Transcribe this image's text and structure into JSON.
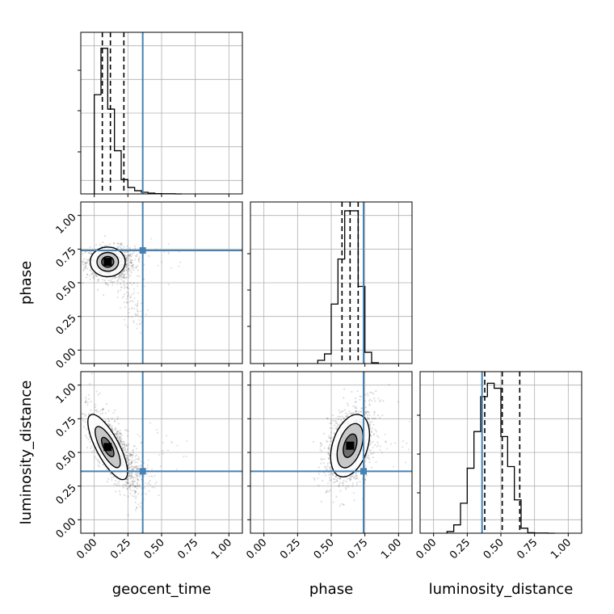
{
  "chart_data": {
    "type": "corner",
    "parameters": [
      "geocent_time",
      "phase",
      "luminosity_distance"
    ],
    "axis_range": [
      -0.1,
      1.1
    ],
    "tick_values": [
      0.0,
      0.25,
      0.5,
      0.75,
      1.0
    ],
    "tick_labels": [
      "0.00",
      "0.25",
      "0.50",
      "0.75",
      "1.00"
    ],
    "grid": true,
    "truths": {
      "geocent_time": 0.36,
      "phase": 0.74,
      "luminosity_distance": 0.36
    },
    "truth_color": "#4682b4",
    "contour_color": "#000000",
    "histograms": {
      "geocent_time": {
        "bin_width": 0.05,
        "bins": [
          0.0,
          0.05,
          0.1,
          0.15,
          0.2,
          0.25,
          0.3,
          0.35,
          0.4,
          0.45,
          0.5,
          0.55,
          0.6
        ],
        "heights": [
          0.62,
          0.91,
          0.53,
          0.27,
          0.09,
          0.04,
          0.02,
          0.01,
          0.005,
          0.002,
          0.001,
          0.001,
          0
        ],
        "ylim": [
          0,
          1.0
        ],
        "quantiles": [
          0.06,
          0.12,
          0.22
        ]
      },
      "phase": {
        "bin_width": 0.05,
        "bins": [
          0.4,
          0.45,
          0.5,
          0.55,
          0.6,
          0.65,
          0.7,
          0.75,
          0.8
        ],
        "heights": [
          0.02,
          0.06,
          0.37,
          0.65,
          0.95,
          0.95,
          0.48,
          0.07,
          0.005
        ],
        "ylim": [
          0,
          0.995
        ],
        "quantiles": [
          0.58,
          0.64,
          0.7
        ]
      },
      "luminosity_distance": {
        "bin_width": 0.05,
        "bins": [
          0.1,
          0.15,
          0.2,
          0.25,
          0.3,
          0.35,
          0.4,
          0.45,
          0.5,
          0.55,
          0.6,
          0.65,
          0.7,
          0.75,
          0.8,
          0.85
        ],
        "heights": [
          0.01,
          0.05,
          0.18,
          0.39,
          0.61,
          0.82,
          0.9,
          0.87,
          0.58,
          0.4,
          0.2,
          0.03,
          0.003,
          0.001,
          0.001,
          0
        ],
        "ylim": [
          0,
          0.96
        ],
        "quantiles": [
          0.38,
          0.51,
          0.64
        ]
      }
    },
    "pairs": [
      {
        "x": "geocent_time",
        "y": "phase",
        "center": [
          0.1,
          0.655
        ],
        "contours": [
          {
            "rx": 0.13,
            "ry": 0.11,
            "rot": 0
          },
          {
            "rx": 0.08,
            "ry": 0.07,
            "rot": 0
          },
          {
            "rx": 0.045,
            "ry": 0.04,
            "rot": 0
          }
        ],
        "cloud": {
          "cx": 0.12,
          "cy": 0.65,
          "sx": 0.09,
          "sy": 0.06,
          "rot": 0,
          "n": 900,
          "tail": [
            0.35,
            0.2,
            0.04
          ]
        }
      },
      {
        "x": "geocent_time",
        "y": "luminosity_distance",
        "center": [
          0.1,
          0.54
        ],
        "contours": [
          {
            "rx": 0.27,
            "ry": 0.085,
            "rot": -62
          },
          {
            "rx": 0.17,
            "ry": 0.055,
            "rot": -62
          },
          {
            "rx": 0.08,
            "ry": 0.03,
            "rot": -62
          }
        ],
        "cloud": {
          "cx": 0.14,
          "cy": 0.52,
          "sx": 0.17,
          "sy": 0.06,
          "rot": -62,
          "n": 1000,
          "tail": [
            0.38,
            0.28,
            0.06
          ]
        }
      },
      {
        "x": "phase",
        "y": "luminosity_distance",
        "center": [
          0.64,
          0.55
        ],
        "contours": [
          {
            "rx": 0.24,
            "ry": 0.13,
            "rot": 72
          },
          {
            "rx": 0.17,
            "ry": 0.085,
            "rot": 72
          },
          {
            "rx": 0.09,
            "ry": 0.045,
            "rot": 72
          }
        ],
        "cloud": {
          "cx": 0.64,
          "cy": 0.56,
          "sx": 0.16,
          "sy": 0.08,
          "rot": 72,
          "n": 1100,
          "tail": [
            0.7,
            0.6,
            0.03
          ]
        }
      }
    ]
  }
}
